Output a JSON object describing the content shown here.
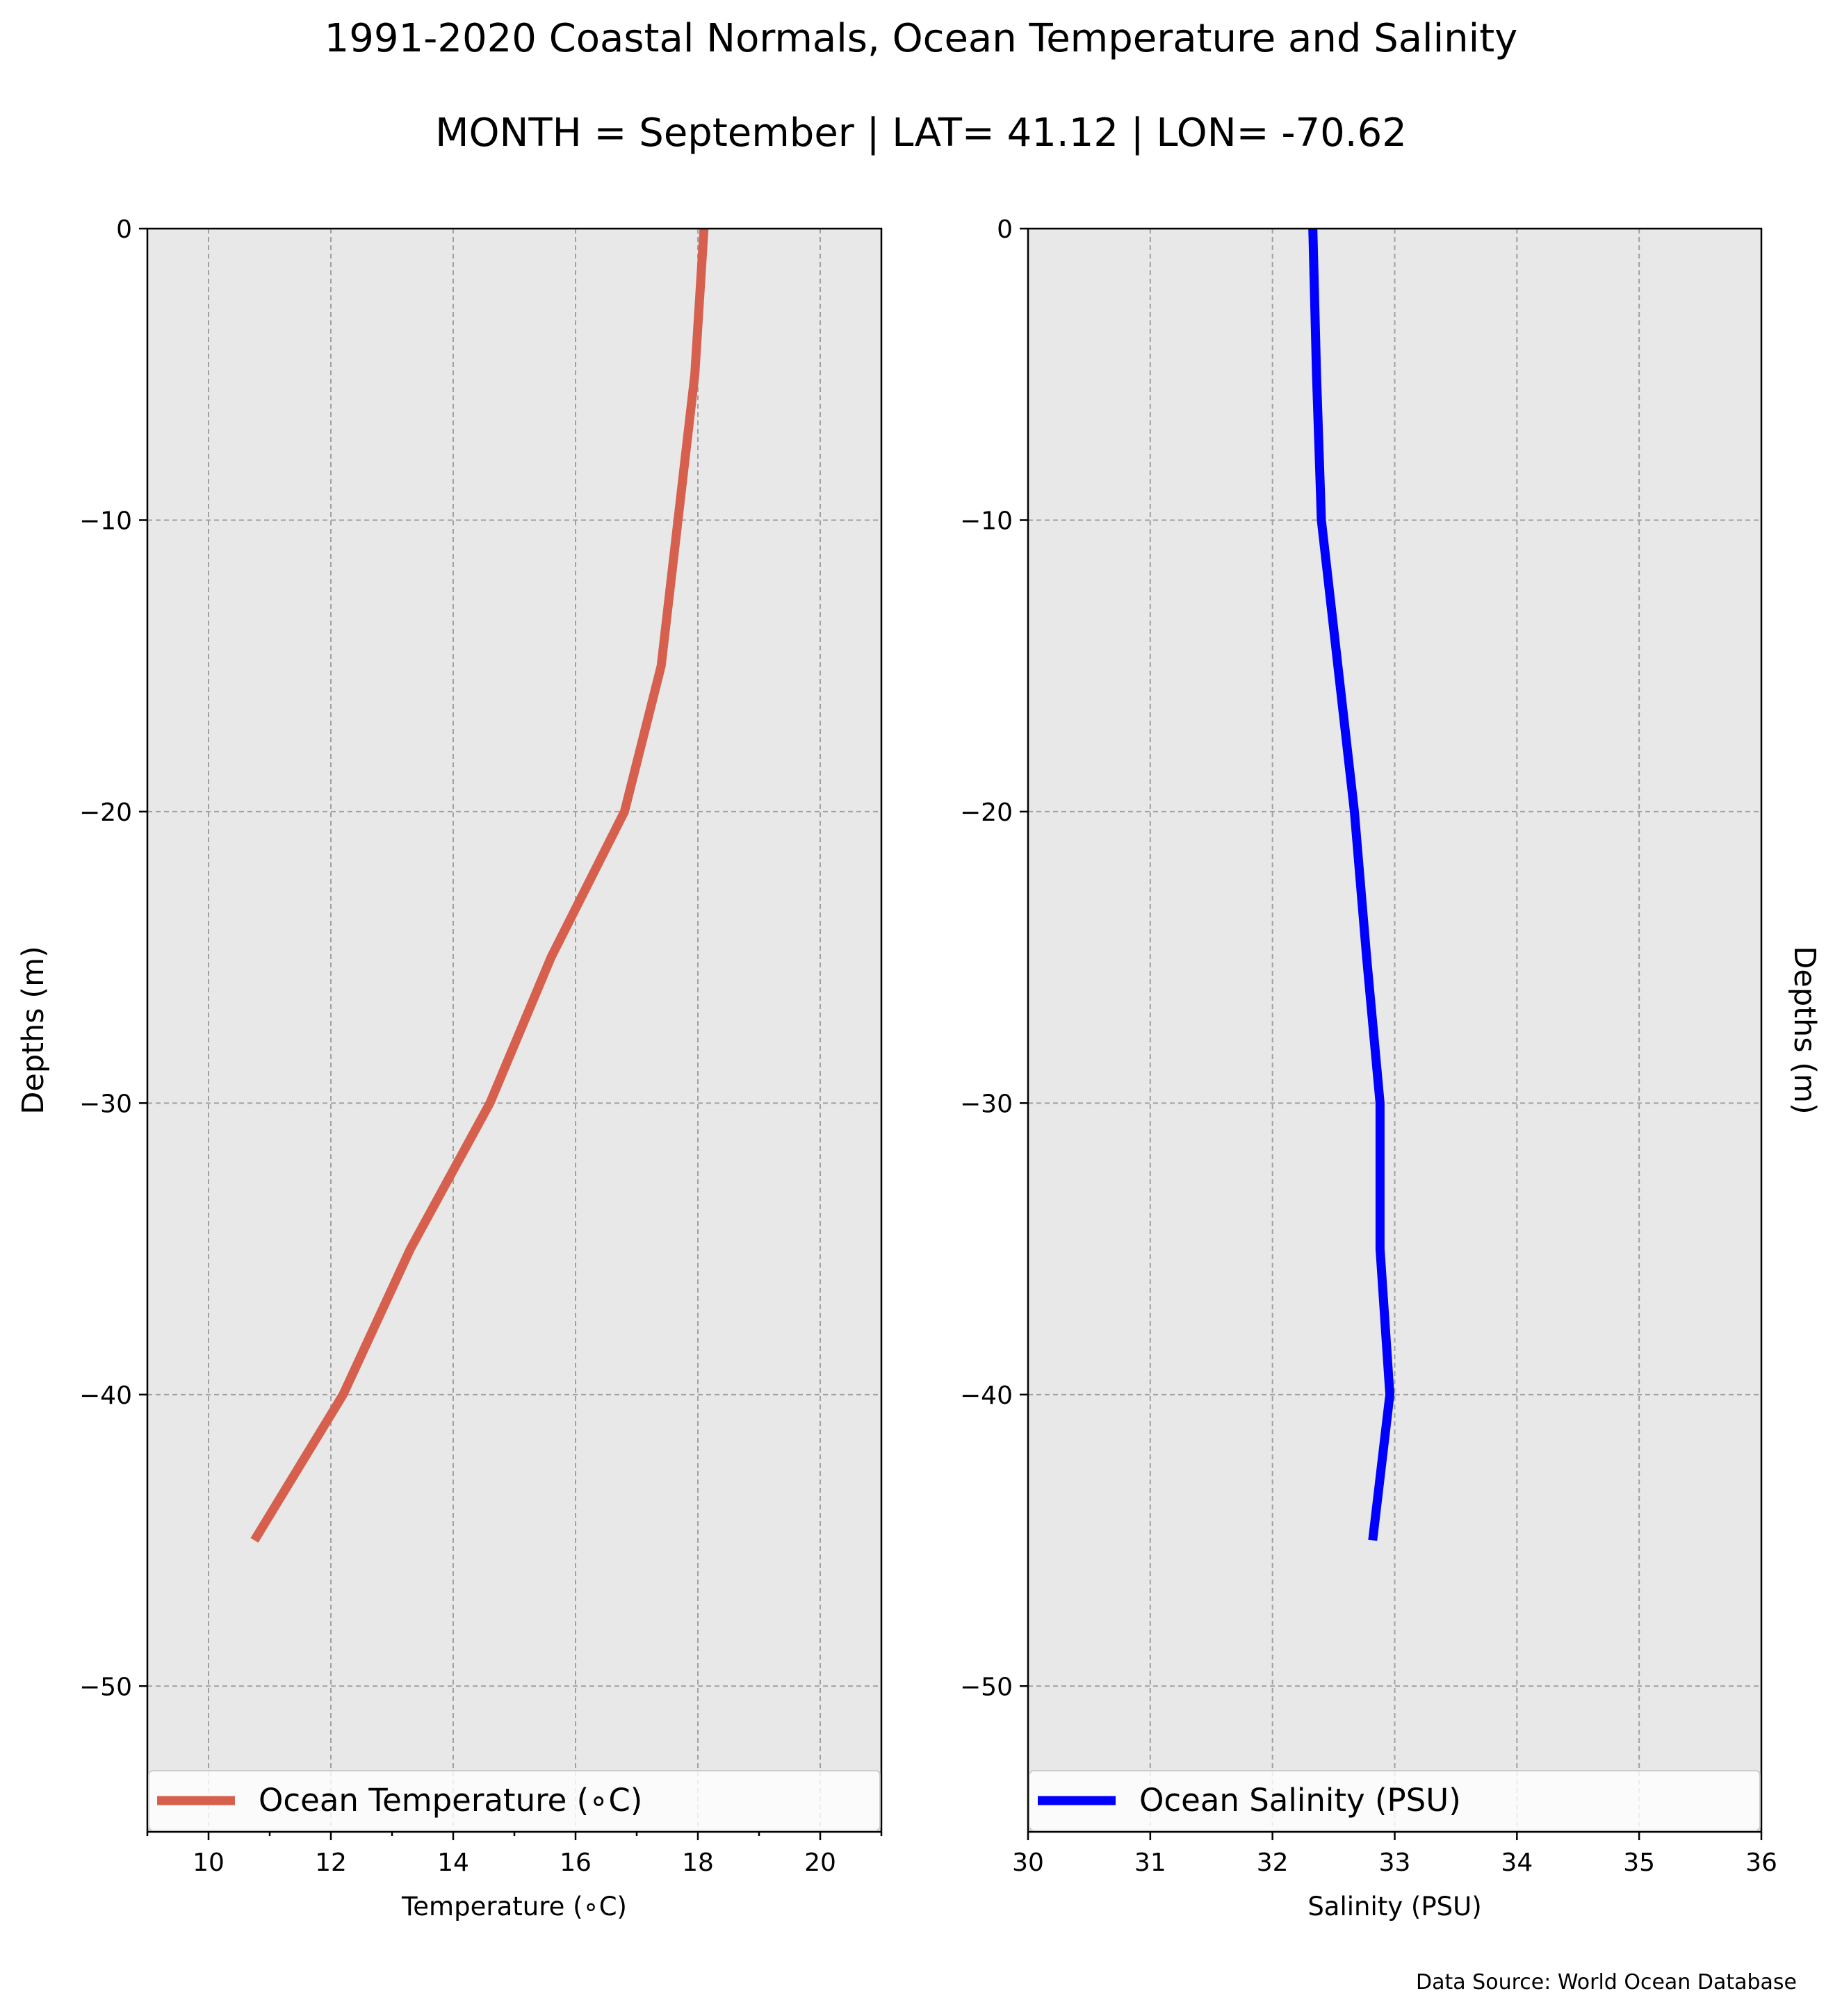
{
  "title_line1": "1991-2020 Coastal Normals, Ocean Temperature and Salinity",
  "title_line2": "MONTH = September | LAT= 41.12 | LON= -70.62",
  "source": "Data Source: World Ocean Database",
  "chart_data": [
    {
      "type": "line",
      "xlabel": "Temperature (∘C)",
      "ylabel": "Depths (m)",
      "ylabel_side": "left",
      "xlim": [
        9,
        21
      ],
      "ylim": [
        -55,
        0
      ],
      "xticks": [
        10,
        12,
        14,
        16,
        18,
        20
      ],
      "xminor": [
        9,
        11,
        13,
        15,
        17,
        19,
        21
      ],
      "yticks": [
        0,
        -10,
        -20,
        -30,
        -40,
        -50
      ],
      "grid": true,
      "legend": "bottom",
      "background": "#e8e8e8",
      "series": [
        {
          "name": "Ocean Temperature (∘C)",
          "color": "#d6604d",
          "x": [
            18.1,
            17.95,
            17.4,
            16.8,
            15.6,
            14.6,
            13.3,
            12.2,
            10.75
          ],
          "y": [
            0,
            -5,
            -15,
            -20,
            -25,
            -30,
            -35,
            -40,
            -45
          ]
        }
      ]
    },
    {
      "type": "line",
      "xlabel": "Salinity (PSU)",
      "ylabel": "Depths (m)",
      "ylabel_side": "right",
      "xlim": [
        30,
        36
      ],
      "ylim": [
        -55,
        0
      ],
      "xticks": [
        30,
        31,
        32,
        33,
        34,
        35,
        36
      ],
      "yticks": [
        0,
        -10,
        -20,
        -30,
        -40,
        -50
      ],
      "grid": true,
      "legend": "bottom",
      "background": "#e8e8e8",
      "series": [
        {
          "name": "Ocean Salinity (PSU)",
          "color": "#0000ff",
          "x": [
            32.33,
            32.36,
            32.4,
            32.67,
            32.77,
            32.88,
            32.88,
            32.96,
            32.82
          ],
          "y": [
            0,
            -5,
            -10,
            -20,
            -25,
            -30,
            -35,
            -40,
            -45
          ]
        }
      ]
    }
  ]
}
